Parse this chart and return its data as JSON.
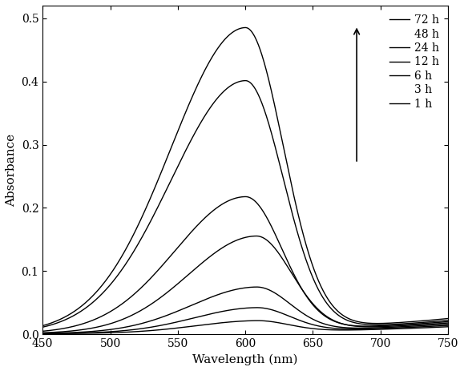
{
  "xlabel": "Wavelength (nm)",
  "ylabel": "Absorbance",
  "xlim": [
    450,
    750
  ],
  "ylim": [
    0,
    0.52
  ],
  "yticks": [
    0.0,
    0.1,
    0.2,
    0.3,
    0.4,
    0.5
  ],
  "xticks": [
    450,
    500,
    550,
    600,
    650,
    700,
    750
  ],
  "legend_labels": [
    "72 h",
    "48 h",
    "24 h",
    "12 h",
    "6 h",
    "3 h",
    "1 h"
  ],
  "legend_show_line": [
    true,
    false,
    true,
    true,
    true,
    false,
    true
  ],
  "peak_absorbances": [
    0.478,
    0.395,
    0.212,
    0.15,
    0.07,
    0.038,
    0.018
  ],
  "peak_wavelengths": [
    600,
    600,
    600,
    608,
    608,
    608,
    608
  ],
  "sigma_left": [
    55,
    55,
    52,
    50,
    48,
    46,
    45
  ],
  "sigma_right": [
    28,
    28,
    27,
    26,
    25,
    25,
    24
  ],
  "baseline_vals": [
    0.025,
    0.022,
    0.02,
    0.018,
    0.016,
    0.014,
    0.012
  ],
  "color": "#000000",
  "linewidth": 1.0,
  "background_color": "#ffffff"
}
